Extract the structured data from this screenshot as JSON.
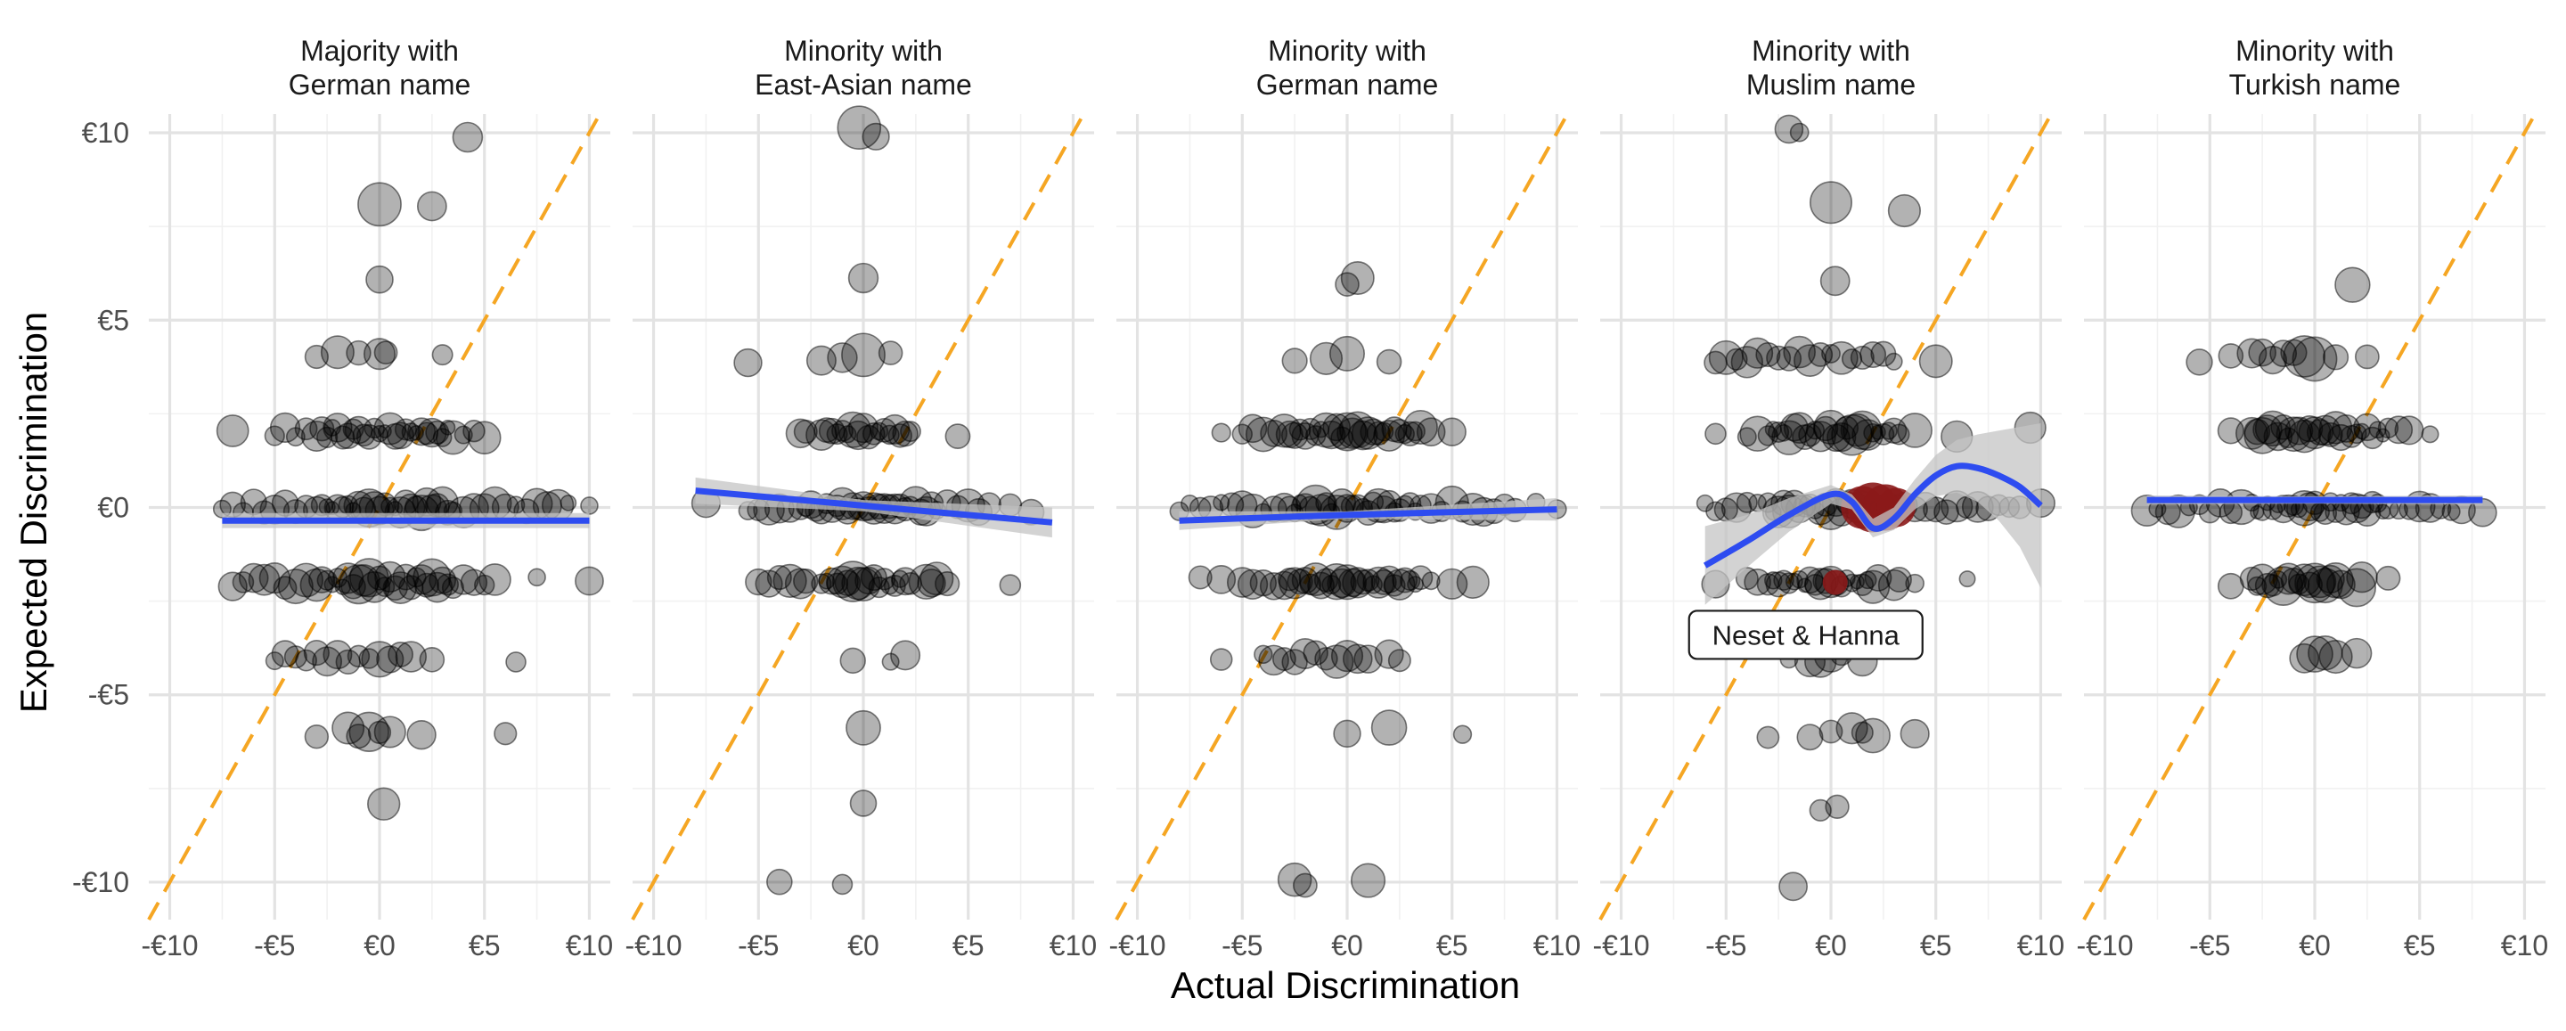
{
  "chart_data": {
    "type": "scatter",
    "title": "",
    "xlabel": "Actual Discrimination",
    "ylabel": "Expected Discrimination",
    "xlim": [
      -11,
      11
    ],
    "ylim": [
      -11,
      10.5
    ],
    "x_ticks": [
      -10,
      -5,
      0,
      5,
      10
    ],
    "y_ticks": [
      -10,
      -5,
      0,
      5,
      10
    ],
    "x_tick_labels": [
      "-€10",
      "-€5",
      "€0",
      "€5",
      "€10"
    ],
    "y_tick_labels": [
      "-€10",
      "-€5",
      "€0",
      "€5",
      "€10"
    ],
    "grid": true,
    "reference_line": {
      "type": "identity",
      "style": "dashed",
      "color": "#f5a623"
    },
    "colors": {
      "points": "#000000",
      "fit_line": "#2e4cf0",
      "confidence_band": "#c4c4c4",
      "reference_line": "#f5a623",
      "highlight": "#8b1a1a"
    },
    "facets": [
      {
        "title_lines": [
          "Majority with",
          "German name"
        ],
        "rows": [
          {
            "y": 10,
            "x": [
              4.2
            ]
          },
          {
            "y": 8,
            "x": [
              0,
              2.5
            ]
          },
          {
            "y": 6,
            "x": [
              0
            ]
          },
          {
            "y": 4,
            "x": [
              -3,
              -2,
              -1,
              0,
              0.3,
              3
            ]
          },
          {
            "y": 2,
            "x": [
              -7,
              -5,
              -4.5,
              -4,
              -3.5,
              -3,
              -2.5,
              -2,
              -1.5,
              -1,
              -0.5,
              0,
              0.5,
              1,
              1.5,
              2,
              2.5,
              3,
              3.5,
              4,
              4.5,
              5
            ]
          },
          {
            "y": 0,
            "x": [
              -7.5,
              -7,
              -6.5,
              -6,
              -5.5,
              -5,
              -4.5,
              -4,
              -3.5,
              -3,
              -2.5,
              -2,
              -1.5,
              -1,
              -0.5,
              0,
              0.5,
              1,
              1.5,
              2,
              2.5,
              3,
              3.5,
              4,
              4.5,
              5,
              5.5,
              6,
              6.5,
              7,
              7.5,
              8,
              8.5,
              9,
              10
            ]
          },
          {
            "y": -2,
            "x": [
              -7,
              -6.5,
              -6,
              -5.5,
              -5,
              -4.5,
              -4,
              -3.5,
              -3,
              -2.5,
              -2,
              -1.5,
              -1,
              -0.5,
              0,
              0.5,
              1,
              1.5,
              2,
              2.5,
              3,
              3.5,
              4,
              4.5,
              5,
              5.5,
              7.5,
              10
            ]
          },
          {
            "y": -4,
            "x": [
              -5,
              -4.5,
              -4,
              -3.5,
              -3,
              -2.5,
              -2,
              -1.5,
              -1,
              -0.5,
              0,
              0.5,
              1,
              1.5,
              2.5,
              6.5
            ]
          },
          {
            "y": -6,
            "x": [
              -3,
              -1.5,
              -1,
              -0.5,
              0,
              0.5,
              2,
              6
            ]
          },
          {
            "y": -8,
            "x": [
              0.2
            ]
          }
        ],
        "fit": {
          "x": [
            -7.5,
            0,
            10
          ],
          "y": [
            -0.35,
            -0.35,
            -0.35
          ],
          "band": [
            -0.2,
            -0.2,
            -0.2
          ]
        }
      },
      {
        "title_lines": [
          "Minority with",
          "East-Asian name"
        ],
        "rows": [
          {
            "y": 10,
            "x": [
              -0.2,
              0.6
            ]
          },
          {
            "y": 6,
            "x": [
              0
            ]
          },
          {
            "y": 4,
            "x": [
              -5.5,
              -2,
              -1,
              0,
              1.3
            ]
          },
          {
            "y": 2,
            "x": [
              -3,
              -2,
              -1.5,
              -1,
              -0.5,
              0,
              0.5,
              1,
              1.5,
              2,
              4.5
            ]
          },
          {
            "y": 0,
            "x": [
              -7.5,
              -5.5,
              -5,
              -4.5,
              -4,
              -3.5,
              -3,
              -2.5,
              -2,
              -1.5,
              -1,
              -0.5,
              0,
              0.5,
              1,
              1.5,
              2,
              2.5,
              3,
              3.5,
              4,
              4.5,
              5,
              5.5,
              6,
              7,
              8
            ]
          },
          {
            "y": -2,
            "x": [
              -5,
              -4.5,
              -4,
              -3.5,
              -3,
              -2,
              -1.5,
              -1,
              -0.5,
              0,
              0.5,
              1,
              1.5,
              2,
              3,
              3.5,
              4,
              7
            ]
          },
          {
            "y": -4,
            "x": [
              -0.5,
              1.3,
              2
            ]
          },
          {
            "y": -6,
            "x": [
              0
            ]
          },
          {
            "y": -8,
            "x": [
              0
            ]
          },
          {
            "y": -10,
            "x": [
              -4,
              -1
            ]
          }
        ],
        "fit": {
          "x": [
            -8,
            0,
            9
          ],
          "y": [
            0.45,
            0.05,
            -0.4
          ],
          "band": [
            0.35,
            0.15,
            0.4
          ]
        }
      },
      {
        "title_lines": [
          "Minority with",
          "German name"
        ],
        "rows": [
          {
            "y": 6,
            "x": [
              0,
              0.5
            ]
          },
          {
            "y": 4,
            "x": [
              -2.5,
              -1,
              0,
              2
            ]
          },
          {
            "y": 2,
            "x": [
              -6,
              -5,
              -4.5,
              -4,
              -3.5,
              -3,
              -2.5,
              -2,
              -1.5,
              -1,
              -0.5,
              0,
              0.5,
              1,
              1.5,
              2,
              2.5,
              3,
              3.5,
              4,
              5
            ]
          },
          {
            "y": 0,
            "x": [
              -8,
              -7.5,
              -7,
              -6.5,
              -6,
              -5.5,
              -5,
              -4.5,
              -4,
              -3.5,
              -3,
              -2.5,
              -2,
              -1.5,
              -1,
              -0.5,
              0,
              0.5,
              1,
              1.5,
              2,
              2.5,
              3,
              3.5,
              4,
              4.5,
              5,
              5.5,
              6,
              6.5,
              7,
              7.5,
              8,
              9,
              10
            ]
          },
          {
            "y": -2,
            "x": [
              -7,
              -6,
              -5,
              -4.5,
              -4,
              -3.5,
              -3,
              -2.5,
              -2,
              -1.5,
              -1,
              -0.5,
              0,
              0.5,
              1,
              1.5,
              2,
              2.5,
              3,
              3.5,
              4,
              5,
              6
            ]
          },
          {
            "y": -4,
            "x": [
              -6,
              -4,
              -3.5,
              -3,
              -2.5,
              -2,
              -1.5,
              -1,
              -0.5,
              0,
              0.5,
              1,
              2,
              2.5
            ]
          },
          {
            "y": -6,
            "x": [
              0,
              2,
              5.5
            ]
          },
          {
            "y": -10,
            "x": [
              -2.5,
              -2,
              1
            ]
          }
        ],
        "fit": {
          "x": [
            -8,
            0,
            10
          ],
          "y": [
            -0.35,
            -0.2,
            -0.05
          ],
          "band": [
            0.25,
            0.1,
            0.3
          ]
        }
      },
      {
        "title_lines": [
          "Minority with",
          "Muslim name"
        ],
        "rows": [
          {
            "y": 10,
            "x": [
              -2,
              -1.5
            ]
          },
          {
            "y": 8,
            "x": [
              0,
              3.5
            ]
          },
          {
            "y": 6,
            "x": [
              0.2
            ]
          },
          {
            "y": 4,
            "x": [
              -5.5,
              -5,
              -4.5,
              -4,
              -3.5,
              -3,
              -2.5,
              -2,
              -1.5,
              -1,
              -0.5,
              0,
              0.5,
              1,
              1.5,
              2,
              2.5,
              3,
              5
            ]
          },
          {
            "y": 2,
            "x": [
              -5.5,
              -4,
              -3.5,
              -3,
              -2.5,
              -2,
              -1.5,
              -1,
              -0.5,
              0,
              0.5,
              1,
              1.5,
              2,
              2.5,
              3,
              4,
              6,
              9.5
            ]
          },
          {
            "y": 0,
            "x": [
              -6,
              -5.5,
              -5,
              -4.5,
              -4,
              -3.5,
              -3,
              -2.5,
              -2,
              -1.5,
              -1,
              -0.5,
              0,
              0.5,
              1,
              1.5,
              2,
              2.5,
              3,
              3.5,
              4,
              4.5,
              5,
              5.5,
              6,
              6.5,
              7,
              7.5,
              8,
              8.5,
              9,
              10
            ]
          },
          {
            "y": -2,
            "x": [
              -5.5,
              -4,
              -3.5,
              -3,
              -2.5,
              -2,
              -1.5,
              -1,
              -0.5,
              0,
              0.5,
              1,
              1.5,
              2,
              3,
              4,
              6.5
            ]
          },
          {
            "y": -4,
            "x": [
              -2,
              -1,
              -0.5,
              0,
              0.5,
              1.5
            ]
          },
          {
            "y": -6,
            "x": [
              -3,
              -1,
              0,
              1,
              1.5,
              2,
              4
            ]
          },
          {
            "y": -8,
            "x": [
              -0.5,
              0.3
            ]
          },
          {
            "y": -10,
            "x": [
              -1.8
            ]
          }
        ],
        "fit": {
          "x": [
            -6,
            -4,
            -2,
            0,
            1,
            2,
            3,
            4,
            5,
            6,
            7,
            8,
            9,
            10
          ],
          "y": [
            -1.55,
            -0.9,
            -0.2,
            0.35,
            0.15,
            -0.55,
            -0.3,
            0.35,
            0.85,
            1.1,
            1.05,
            0.85,
            0.55,
            0.05
          ],
          "band": [
            1.05,
            0.7,
            0.45,
            0.25,
            0.2,
            0.25,
            0.3,
            0.4,
            0.55,
            0.7,
            0.9,
            1.2,
            1.6,
            2.2
          ]
        },
        "highlight_points": [
          {
            "x": 1.5,
            "y": 0,
            "size": 24
          },
          {
            "x": 2,
            "y": 0,
            "size": 28
          },
          {
            "x": 2.6,
            "y": 0,
            "size": 26
          },
          {
            "x": 3.1,
            "y": 0,
            "size": 22
          },
          {
            "x": 0.2,
            "y": -2,
            "size": 14
          }
        ],
        "annotation": {
          "text": "Neset & Hanna",
          "x": -1.2,
          "y": -3.4
        }
      },
      {
        "title_lines": [
          "Minority with",
          "Turkish name"
        ],
        "rows": [
          {
            "y": 6,
            "x": [
              1.8
            ]
          },
          {
            "y": 4,
            "x": [
              -5.5,
              -4,
              -3,
              -2.5,
              -2,
              -1.5,
              -1,
              -0.5,
              0,
              1,
              2.5
            ]
          },
          {
            "y": 2,
            "x": [
              -4,
              -3,
              -2.5,
              -2,
              -1.5,
              -1,
              -0.5,
              0,
              0.5,
              1,
              1.5,
              2,
              2.5,
              3,
              3.5,
              4,
              4.5,
              5.5
            ]
          },
          {
            "y": 0,
            "x": [
              -8,
              -7.5,
              -7,
              -6.5,
              -6,
              -5.5,
              -5,
              -4.5,
              -4,
              -3.5,
              -3,
              -2.5,
              -2,
              -1.5,
              -1,
              -0.5,
              0,
              0.5,
              1,
              1.5,
              2,
              2.5,
              3,
              3.5,
              4,
              4.5,
              5,
              5.5,
              6,
              6.5,
              7,
              8
            ]
          },
          {
            "y": -2,
            "x": [
              -4,
              -3,
              -2.5,
              -2,
              -1.5,
              -1,
              -0.5,
              0,
              0.5,
              1,
              2,
              3.5
            ]
          },
          {
            "y": -4,
            "x": [
              -0.5,
              0,
              0.5,
              1,
              2
            ]
          }
        ],
        "fit": {
          "x": [
            -8,
            0,
            8
          ],
          "y": [
            0.2,
            0.2,
            0.2
          ],
          "band": [
            0.12,
            0.1,
            0.12
          ]
        }
      }
    ]
  }
}
